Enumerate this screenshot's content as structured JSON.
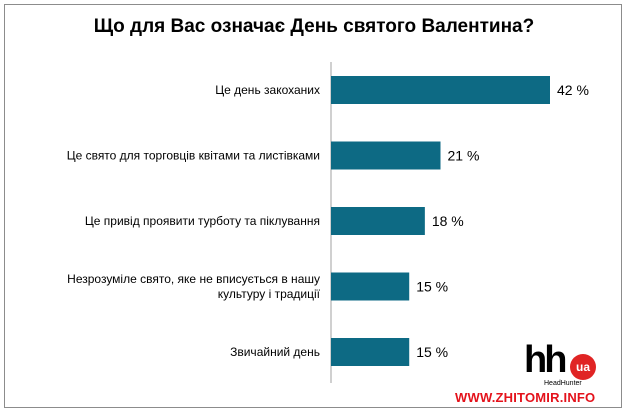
{
  "title": "Що для Вас означає День святого Валентина?",
  "chart_data": {
    "type": "bar",
    "orientation": "horizontal",
    "title": "Що для Вас означає День святого Валентина?",
    "categories": [
      [
        "Це день закоханих"
      ],
      [
        "Це свято для торговців квітами та листівками"
      ],
      [
        "Це привід проявити турботу та піклування"
      ],
      [
        "Незрозуміле свято, яке не вписується в нашу",
        "культуру і традиції"
      ],
      [
        "Звичайний день"
      ]
    ],
    "values": [
      42,
      21,
      18,
      15,
      15
    ],
    "value_labels": [
      "42 %",
      "21 %",
      "18 %",
      "15 %",
      "15 %"
    ],
    "unit": "%",
    "xlim": [
      0,
      42
    ],
    "bar_color": "#0d6a84",
    "grid": false,
    "legend": "none"
  },
  "logo": {
    "mark": "hh",
    "badge": "ua",
    "sub": "HeadHunter"
  },
  "watermark": "WWW.ZHITOMIR.INFO",
  "colors": {
    "watermark": "#e4121b",
    "badge": "#e02424"
  }
}
